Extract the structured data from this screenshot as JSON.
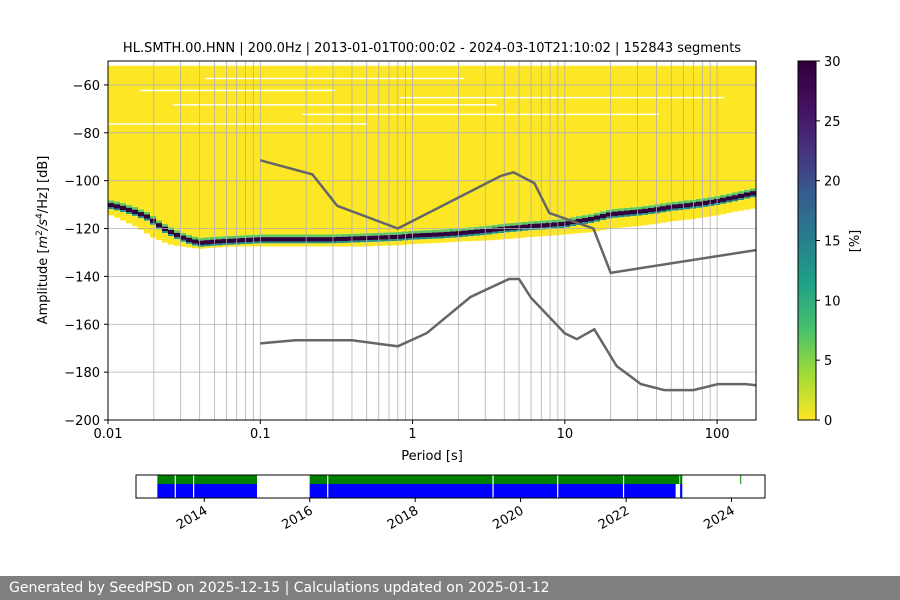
{
  "chart_data": [
    {
      "type": "heatmap",
      "title": "HL.SMTH.00.HNN | 200.0Hz | 2013-01-01T00:00:02 - 2024-03-10T21:10:02 | 152843 segments",
      "xlabel": "Period [s]",
      "ylabel_prefix": "Amplitude [",
      "ylabel_math": "m",
      "ylabel_sup1": "2",
      "ylabel_mid": "/s",
      "ylabel_sup2": "4",
      "ylabel_suffix": "/Hz] [dB]",
      "x_scale": "log",
      "xlim": [
        0.01,
        180
      ],
      "ylim": [
        -200,
        -50
      ],
      "x_ticks": [
        {
          "value": 0.01,
          "label": "0.01"
        },
        {
          "value": 0.1,
          "label": "0.1"
        },
        {
          "value": 1,
          "label": "1"
        },
        {
          "value": 10,
          "label": "10"
        },
        {
          "value": 100,
          "label": "100"
        }
      ],
      "y_ticks": [
        -60,
        -80,
        -100,
        -120,
        -140,
        -160,
        -180,
        -200
      ],
      "grid": true,
      "colorbar": {
        "label": "[%]",
        "min": 0,
        "max": 30,
        "ticks": [
          0,
          5,
          10,
          15,
          20,
          25,
          30
        ],
        "colormap": "viridis-reversed"
      },
      "mode_curve": {
        "period": [
          0.01,
          0.012,
          0.015,
          0.018,
          0.02,
          0.022,
          0.025,
          0.03,
          0.035,
          0.04,
          0.05,
          0.07,
          0.1,
          0.15,
          0.2,
          0.3,
          0.5,
          0.8,
          1,
          1.5,
          2,
          3,
          4,
          5,
          6,
          8,
          10,
          12,
          15,
          20,
          30,
          40,
          50,
          70,
          100,
          130,
          180
        ],
        "db": [
          -110,
          -111,
          -113,
          -115,
          -117,
          -119,
          -121,
          -123.5,
          -125,
          -126,
          -125.5,
          -125,
          -124.5,
          -124.5,
          -124.5,
          -124.5,
          -124,
          -123.5,
          -123,
          -122.5,
          -122,
          -121,
          -120,
          -119.5,
          -119,
          -118.5,
          -118,
          -117,
          -116,
          -114,
          -113,
          -112,
          -111,
          -110,
          -108.5,
          -107,
          -105
        ]
      },
      "distribution": {
        "upper_db": [
          -52,
          -52,
          -52,
          -52,
          -52,
          -52,
          -52,
          -52,
          -52,
          -52,
          -52,
          -52,
          -52,
          -52,
          -52,
          -52,
          -52,
          -52,
          -52,
          -52,
          -52,
          -52,
          -52,
          -52,
          -52,
          -52,
          -52,
          -52,
          -52,
          -52,
          -52,
          -52,
          -52,
          -52,
          -52,
          -52,
          -52
        ],
        "lower_db": [
          -114,
          -116,
          -119,
          -122,
          -124,
          -125,
          -126.5,
          -127.5,
          -128,
          -128.5,
          -128,
          -127.5,
          -127.5,
          -127.5,
          -127.5,
          -127.5,
          -127.5,
          -127,
          -126.5,
          -126,
          -125.5,
          -125,
          -124.5,
          -124,
          -123.5,
          -123,
          -122.5,
          -122,
          -121.5,
          -120,
          -119,
          -118,
          -117,
          -116,
          -114.5,
          -113,
          -111.5
        ]
      },
      "nhnm": {
        "period": [
          0.1,
          0.22,
          0.32,
          0.8,
          3.8,
          4.6,
          6.3,
          7.9,
          15.4,
          20,
          180
        ],
        "db": [
          -91.5,
          -97.4,
          -110.5,
          -120,
          -98,
          -96.5,
          -101,
          -113.5,
          -120,
          -138.5,
          -129
        ]
      },
      "nlnm": {
        "period": [
          0.1,
          0.17,
          0.4,
          0.8,
          1.24,
          2.4,
          4.3,
          5,
          6,
          10,
          12,
          15.6,
          21.9,
          31.6,
          45,
          70,
          101,
          154,
          180
        ],
        "db": [
          -168,
          -166.7,
          -166.7,
          -169.2,
          -163.7,
          -148.6,
          -141.1,
          -141.1,
          -149,
          -163.8,
          -166.2,
          -162.1,
          -177.5,
          -185,
          -187.5,
          -187.5,
          -185,
          -185,
          -185.5
        ]
      },
      "period_grid_lines": [
        0.02,
        0.03,
        0.04,
        0.05,
        0.06,
        0.07,
        0.08,
        0.09,
        0.2,
        0.3,
        0.4,
        0.5,
        0.6,
        0.7,
        0.8,
        0.9,
        2,
        3,
        4,
        5,
        6,
        7,
        8,
        9,
        20,
        30,
        40,
        50,
        60,
        70,
        80,
        90
      ]
    },
    {
      "type": "bar",
      "xlim": [
        "2012-09-15",
        "2024-08-20"
      ],
      "x_ticks": [
        {
          "date": "2014-01-01",
          "label": "2014"
        },
        {
          "date": "2016-01-01",
          "label": "2016"
        },
        {
          "date": "2018-01-01",
          "label": "2018"
        },
        {
          "date": "2020-01-01",
          "label": "2020"
        },
        {
          "date": "2022-01-01",
          "label": "2022"
        },
        {
          "date": "2024-01-01",
          "label": "2024"
        }
      ],
      "green_spans": [
        [
          "2013-02-10",
          "2015-01-01"
        ],
        [
          "2016-01-01",
          "2023-01-05"
        ],
        [
          "2023-01-10",
          "2023-01-25"
        ],
        [
          "2024-03-01",
          "2024-03-05"
        ]
      ],
      "blue_spans": [
        [
          "2013-02-10",
          "2015-01-01"
        ],
        [
          "2016-01-01",
          "2022-12-10"
        ],
        [
          "2023-01-10",
          "2023-01-25"
        ]
      ],
      "gaps": [
        "2013-06-10",
        "2013-10-15",
        "2016-05-01",
        "2019-06-20",
        "2020-09-10",
        "2021-12-10"
      ],
      "colors": {
        "green": "#008000",
        "blue": "#0000ff"
      }
    }
  ],
  "footer": {
    "text": "Generated by SeedPSD on 2025-12-15 | Calculations updated on 2025-01-12"
  }
}
